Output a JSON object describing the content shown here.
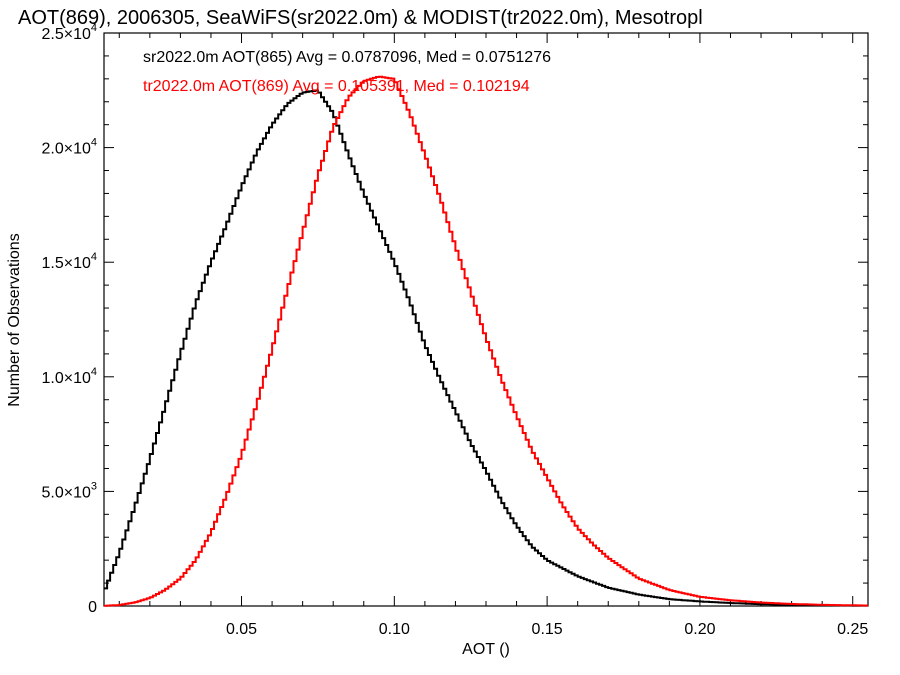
{
  "chart_data": {
    "type": "line",
    "title": "AOT(869), 2006305, SeaWiFS(sr2022.0m) & MODIST(tr2022.0m), Mesotropl",
    "xlabel": "AOT ()",
    "ylabel": "Number of Observations",
    "xlim": [
      0.005,
      0.255
    ],
    "ylim": [
      0,
      25000
    ],
    "x_ticks": [
      {
        "value": 0.05,
        "label": "0.05"
      },
      {
        "value": 0.1,
        "label": "0.10"
      },
      {
        "value": 0.15,
        "label": "0.15"
      },
      {
        "value": 0.2,
        "label": "0.20"
      },
      {
        "value": 0.25,
        "label": "0.25"
      }
    ],
    "y_ticks": [
      {
        "value": 0,
        "label": "0"
      },
      {
        "value": 5000,
        "mant": "5.0",
        "exp": "3"
      },
      {
        "value": 10000,
        "mant": "1.0",
        "exp": "4"
      },
      {
        "value": 15000,
        "mant": "1.5",
        "exp": "4"
      },
      {
        "value": 20000,
        "mant": "2.0",
        "exp": "4"
      },
      {
        "value": 25000,
        "mant": "2.5",
        "exp": "4"
      }
    ],
    "grid": false,
    "step": 0.001,
    "series": [
      {
        "name": "sr2022.0m AOT(865) Avg = 0.0787096, Med = 0.0751276",
        "color": "#000000",
        "x": [
          0.005,
          0.01,
          0.015,
          0.02,
          0.025,
          0.03,
          0.035,
          0.04,
          0.045,
          0.05,
          0.055,
          0.06,
          0.065,
          0.07,
          0.075,
          0.08,
          0.085,
          0.09,
          0.095,
          0.1,
          0.105,
          0.11,
          0.115,
          0.12,
          0.125,
          0.13,
          0.135,
          0.14,
          0.145,
          0.15,
          0.16,
          0.17,
          0.18,
          0.19,
          0.2,
          0.21,
          0.22,
          0.23,
          0.24,
          0.255
        ],
        "y": [
          600,
          2300,
          4300,
          6400,
          8700,
          11000,
          13200,
          15000,
          16600,
          18300,
          19800,
          21000,
          21900,
          22400,
          22500,
          21500,
          19700,
          18000,
          16500,
          15000,
          13300,
          11400,
          9900,
          8500,
          7100,
          5900,
          4600,
          3500,
          2600,
          2000,
          1300,
          800,
          500,
          300,
          200,
          130,
          80,
          50,
          30,
          15
        ]
      },
      {
        "name": "tr2022.0m AOT(869) Avg = 0.105391, Med = 0.102194",
        "color": "#ff0000",
        "x": [
          0.005,
          0.01,
          0.015,
          0.02,
          0.025,
          0.03,
          0.035,
          0.04,
          0.045,
          0.05,
          0.055,
          0.06,
          0.065,
          0.07,
          0.075,
          0.08,
          0.085,
          0.09,
          0.095,
          0.1,
          0.105,
          0.11,
          0.115,
          0.12,
          0.125,
          0.13,
          0.135,
          0.14,
          0.145,
          0.15,
          0.155,
          0.16,
          0.165,
          0.17,
          0.18,
          0.19,
          0.2,
          0.21,
          0.22,
          0.23,
          0.24,
          0.255
        ],
        "y": [
          10,
          40,
          150,
          350,
          700,
          1200,
          2000,
          3200,
          4800,
          6600,
          8800,
          11200,
          13800,
          16300,
          18800,
          20900,
          22200,
          22900,
          23100,
          23000,
          21500,
          19700,
          17800,
          15700,
          13700,
          11700,
          9900,
          8300,
          6800,
          5600,
          4400,
          3400,
          2700,
          2100,
          1200,
          700,
          400,
          250,
          150,
          90,
          50,
          20
        ]
      }
    ]
  }
}
